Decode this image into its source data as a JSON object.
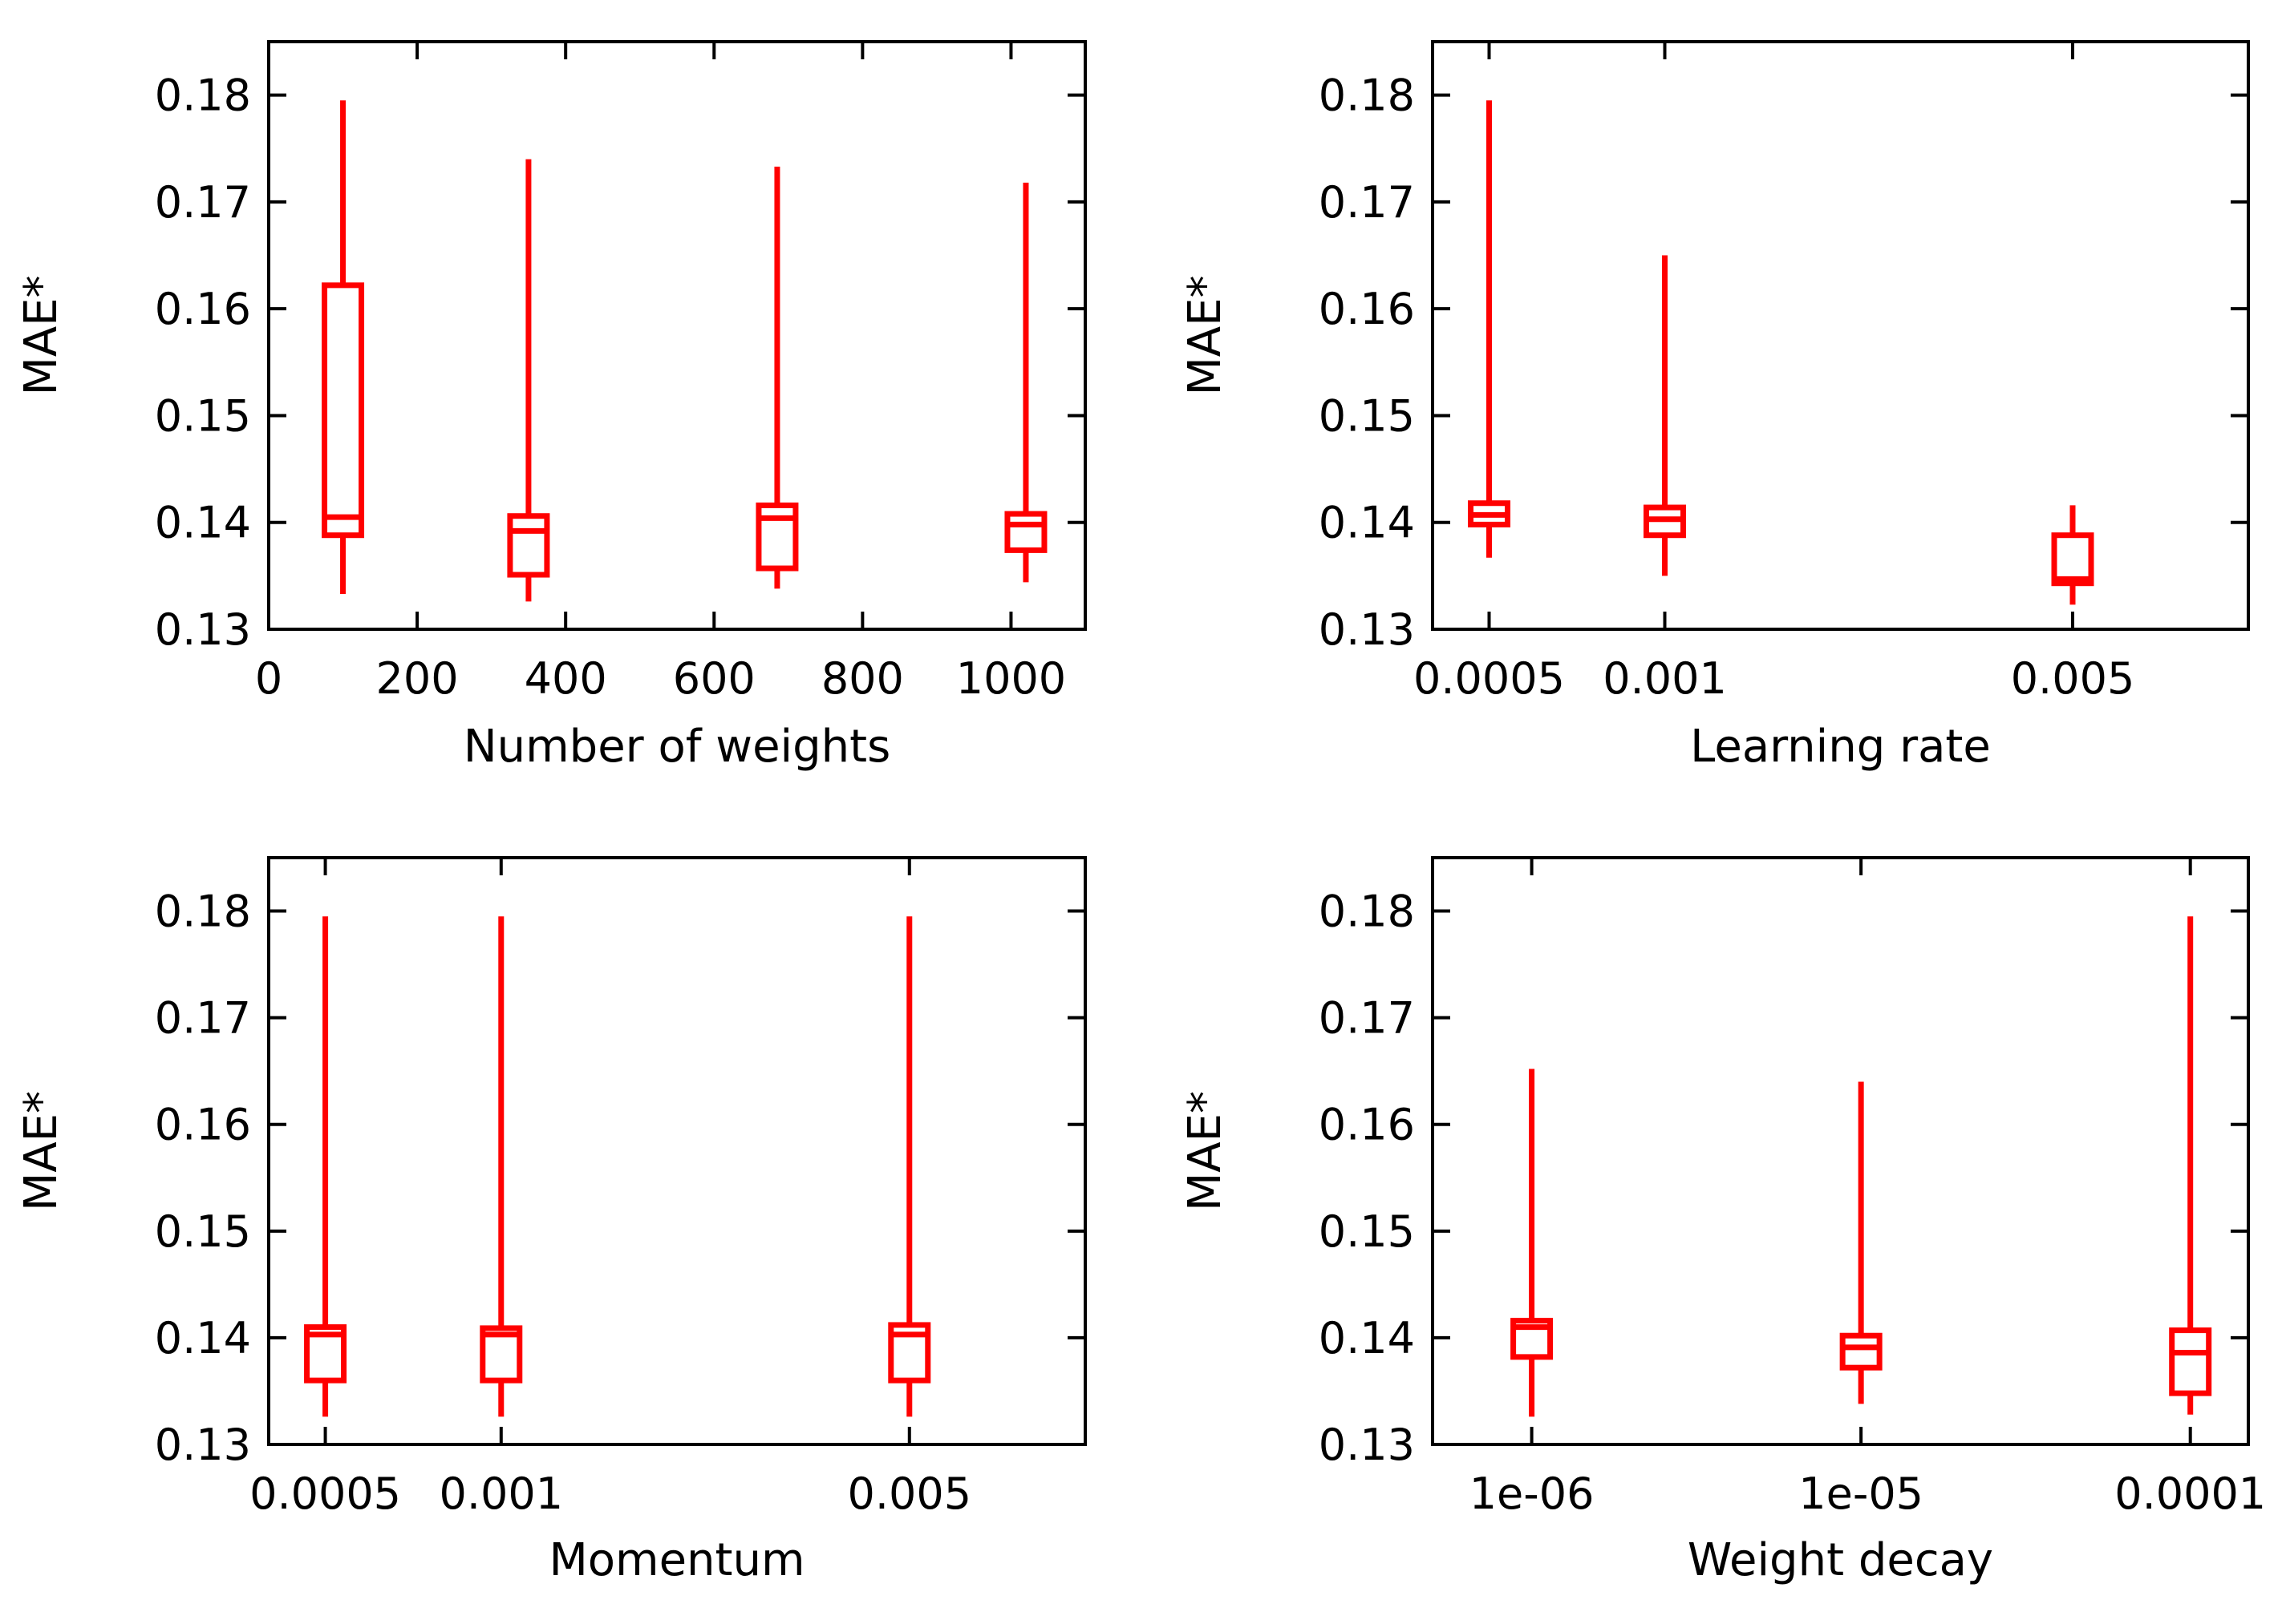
{
  "colors": {
    "series": "#ff0000",
    "axis": "#000000",
    "background": "#ffffff"
  },
  "chart_data": [
    {
      "type": "box",
      "title": "",
      "xlabel": "Number of weights",
      "ylabel": "MAE*",
      "xscale": "linear",
      "xlim": [
        0,
        1100
      ],
      "ylim": [
        0.13,
        0.185
      ],
      "xticks": [
        0,
        200,
        400,
        600,
        800,
        1000
      ],
      "xtick_labels": [
        "0",
        "200",
        "400",
        "600",
        "800",
        "1000"
      ],
      "yticks": [
        0.13,
        0.14,
        0.15,
        0.16,
        0.17,
        0.18
      ],
      "ytick_labels": [
        "0.13",
        "0.14",
        "0.15",
        "0.16",
        "0.17",
        "0.18"
      ],
      "boxes": [
        {
          "x": 100,
          "min": 0.1333,
          "q1": 0.1388,
          "median": 0.1405,
          "q3": 0.1622,
          "max": 0.1795,
          "width": 50
        },
        {
          "x": 350,
          "min": 0.1326,
          "q1": 0.1351,
          "median": 0.1392,
          "q3": 0.1406,
          "max": 0.174,
          "width": 50
        },
        {
          "x": 685,
          "min": 0.1338,
          "q1": 0.1357,
          "median": 0.1404,
          "q3": 0.1416,
          "max": 0.1733,
          "width": 50
        },
        {
          "x": 1020,
          "min": 0.1344,
          "q1": 0.1374,
          "median": 0.1398,
          "q3": 0.1408,
          "max": 0.1718,
          "width": 50
        }
      ]
    },
    {
      "type": "box",
      "title": "",
      "xlabel": "Learning rate",
      "ylabel": "MAE*",
      "xscale": "log",
      "xlim": [
        0.0004,
        0.01
      ],
      "ylim": [
        0.13,
        0.185
      ],
      "xticks": [
        0.0005,
        0.001,
        0.005
      ],
      "xtick_labels": [
        "0.0005",
        "0.001",
        "0.005"
      ],
      "yticks": [
        0.13,
        0.14,
        0.15,
        0.16,
        0.17,
        0.18
      ],
      "ytick_labels": [
        "0.13",
        "0.14",
        "0.15",
        "0.16",
        "0.17",
        "0.18"
      ],
      "boxes": [
        {
          "x": 0.0005,
          "min": 0.1367,
          "q1": 0.1398,
          "median": 0.1407,
          "q3": 0.1418,
          "max": 0.1795
        },
        {
          "x": 0.001,
          "min": 0.135,
          "q1": 0.1388,
          "median": 0.1403,
          "q3": 0.1414,
          "max": 0.165
        },
        {
          "x": 0.005,
          "min": 0.1323,
          "q1": 0.1343,
          "median": 0.1347,
          "q3": 0.1388,
          "max": 0.1416
        }
      ]
    },
    {
      "type": "box",
      "title": "",
      "xlabel": "Momentum",
      "ylabel": "MAE*",
      "xscale": "log",
      "xlim": [
        0.0004,
        0.01
      ],
      "ylim": [
        0.13,
        0.185
      ],
      "xticks": [
        0.0005,
        0.001,
        0.005
      ],
      "xtick_labels": [
        "0.0005",
        "0.001",
        "0.005"
      ],
      "yticks": [
        0.13,
        0.14,
        0.15,
        0.16,
        0.17,
        0.18
      ],
      "ytick_labels": [
        "0.13",
        "0.14",
        "0.15",
        "0.16",
        "0.17",
        "0.18"
      ],
      "boxes": [
        {
          "x": 0.0005,
          "min": 0.1326,
          "q1": 0.136,
          "median": 0.1403,
          "q3": 0.141,
          "max": 0.1795
        },
        {
          "x": 0.001,
          "min": 0.1326,
          "q1": 0.136,
          "median": 0.1403,
          "q3": 0.1409,
          "max": 0.1795
        },
        {
          "x": 0.005,
          "min": 0.1326,
          "q1": 0.136,
          "median": 0.1403,
          "q3": 0.1412,
          "max": 0.1795
        }
      ]
    },
    {
      "type": "box",
      "title": "",
      "xlabel": "Weight decay",
      "ylabel": "MAE*",
      "xscale": "log",
      "xlim": [
        5e-07,
        0.00015
      ],
      "ylim": [
        0.13,
        0.185
      ],
      "xticks": [
        1e-06,
        1e-05,
        0.0001
      ],
      "xtick_labels": [
        "1e-06",
        "1e-05",
        "0.0001"
      ],
      "yticks": [
        0.13,
        0.14,
        0.15,
        0.16,
        0.17,
        0.18
      ],
      "ytick_labels": [
        "0.13",
        "0.14",
        "0.15",
        "0.16",
        "0.17",
        "0.18"
      ],
      "boxes": [
        {
          "x": 1e-06,
          "min": 0.1326,
          "q1": 0.1382,
          "median": 0.141,
          "q3": 0.1416,
          "max": 0.1652
        },
        {
          "x": 1e-05,
          "min": 0.1338,
          "q1": 0.1372,
          "median": 0.1391,
          "q3": 0.1402,
          "max": 0.164
        },
        {
          "x": 0.0001,
          "min": 0.1328,
          "q1": 0.1348,
          "median": 0.1386,
          "q3": 0.1407,
          "max": 0.1795
        }
      ]
    }
  ]
}
